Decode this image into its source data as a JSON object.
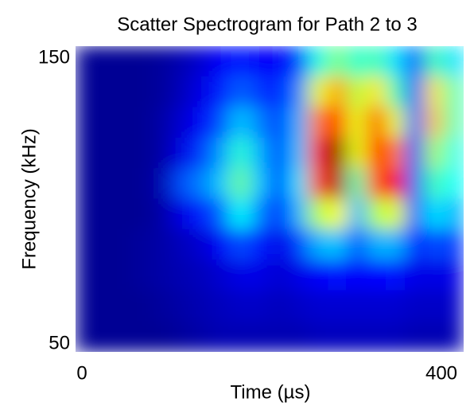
{
  "chart_data": {
    "type": "heatmap",
    "title": "Scatter Spectrogram for Path 2 to 3",
    "xlabel": "Time (µs)",
    "ylabel": "Frequency (kHz)",
    "xlim": [
      0,
      400
    ],
    "xticks": [
      0,
      400
    ],
    "ylim": [
      50,
      150
    ],
    "yticks": [
      50,
      150
    ],
    "colormap": "jet",
    "x": [
      10,
      30,
      50,
      70,
      90,
      110,
      130,
      150,
      170,
      190,
      210,
      230,
      250,
      270,
      290,
      310,
      330,
      350,
      370,
      390
    ],
    "y": [
      145,
      135,
      125,
      115,
      105,
      95,
      85,
      75,
      65,
      55
    ],
    "z": [
      [
        0.02,
        0.02,
        0.02,
        0.02,
        0.03,
        0.05,
        0.08,
        0.12,
        0.15,
        0.12,
        0.12,
        0.18,
        0.4,
        0.5,
        0.42,
        0.45,
        0.35,
        0.2,
        0.45,
        0.35
      ],
      [
        0.02,
        0.02,
        0.02,
        0.02,
        0.03,
        0.06,
        0.1,
        0.15,
        0.22,
        0.18,
        0.15,
        0.25,
        0.6,
        0.72,
        0.55,
        0.65,
        0.45,
        0.2,
        0.65,
        0.45
      ],
      [
        0.02,
        0.02,
        0.02,
        0.02,
        0.04,
        0.08,
        0.12,
        0.2,
        0.32,
        0.25,
        0.18,
        0.3,
        0.75,
        0.85,
        0.6,
        0.8,
        0.6,
        0.22,
        0.68,
        0.45
      ],
      [
        0.02,
        0.02,
        0.02,
        0.02,
        0.04,
        0.1,
        0.18,
        0.28,
        0.42,
        0.3,
        0.18,
        0.32,
        0.85,
        1.0,
        0.6,
        0.85,
        0.75,
        0.2,
        0.55,
        0.4
      ],
      [
        0.02,
        0.02,
        0.02,
        0.02,
        0.05,
        0.2,
        0.25,
        0.32,
        0.48,
        0.32,
        0.18,
        0.35,
        0.8,
        0.95,
        0.45,
        0.8,
        0.88,
        0.22,
        0.45,
        0.38
      ],
      [
        0.02,
        0.02,
        0.02,
        0.02,
        0.04,
        0.1,
        0.15,
        0.22,
        0.38,
        0.25,
        0.15,
        0.3,
        0.55,
        0.62,
        0.3,
        0.55,
        0.6,
        0.2,
        0.35,
        0.3
      ],
      [
        0.02,
        0.02,
        0.02,
        0.03,
        0.04,
        0.06,
        0.08,
        0.12,
        0.2,
        0.15,
        0.1,
        0.18,
        0.3,
        0.32,
        0.2,
        0.3,
        0.3,
        0.15,
        0.2,
        0.18
      ],
      [
        0.02,
        0.02,
        0.02,
        0.03,
        0.04,
        0.05,
        0.06,
        0.08,
        0.1,
        0.1,
        0.08,
        0.1,
        0.12,
        0.14,
        0.12,
        0.13,
        0.14,
        0.1,
        0.1,
        0.1
      ],
      [
        0.02,
        0.02,
        0.02,
        0.02,
        0.03,
        0.04,
        0.05,
        0.06,
        0.07,
        0.07,
        0.06,
        0.07,
        0.08,
        0.08,
        0.08,
        0.08,
        0.08,
        0.07,
        0.07,
        0.07
      ],
      [
        0.02,
        0.02,
        0.02,
        0.02,
        0.02,
        0.03,
        0.04,
        0.05,
        0.05,
        0.05,
        0.05,
        0.05,
        0.06,
        0.06,
        0.06,
        0.06,
        0.06,
        0.05,
        0.05,
        0.05
      ]
    ]
  }
}
